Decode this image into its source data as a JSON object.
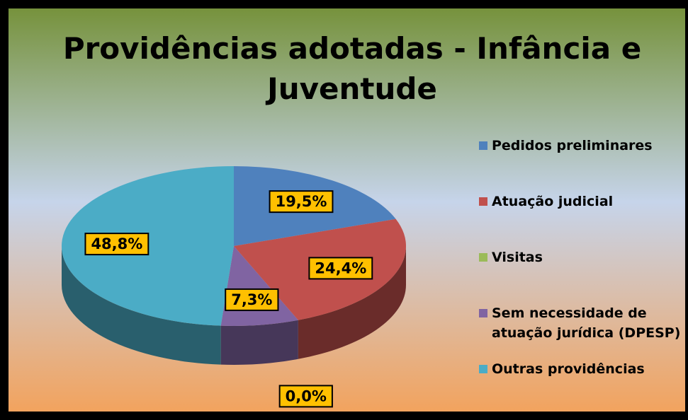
{
  "chart_data": {
    "type": "pie",
    "title": "Providências adotadas - Infância e Juventude",
    "categories": [
      "Pedidos preliminares",
      "Atuação judicial",
      "Visitas",
      "Sem necessidade de atuação jurídica (DPESP)",
      "Outras providências"
    ],
    "values": [
      19.5,
      24.4,
      0.0,
      7.3,
      48.8
    ],
    "value_labels": [
      "19,5%",
      "24,4%",
      "0,0%",
      "7,3%",
      "48,8%"
    ],
    "colors": [
      "#4f81bd",
      "#c0504d",
      "#9bbb59",
      "#8064a2",
      "#4bacc6"
    ],
    "legend": "right"
  }
}
